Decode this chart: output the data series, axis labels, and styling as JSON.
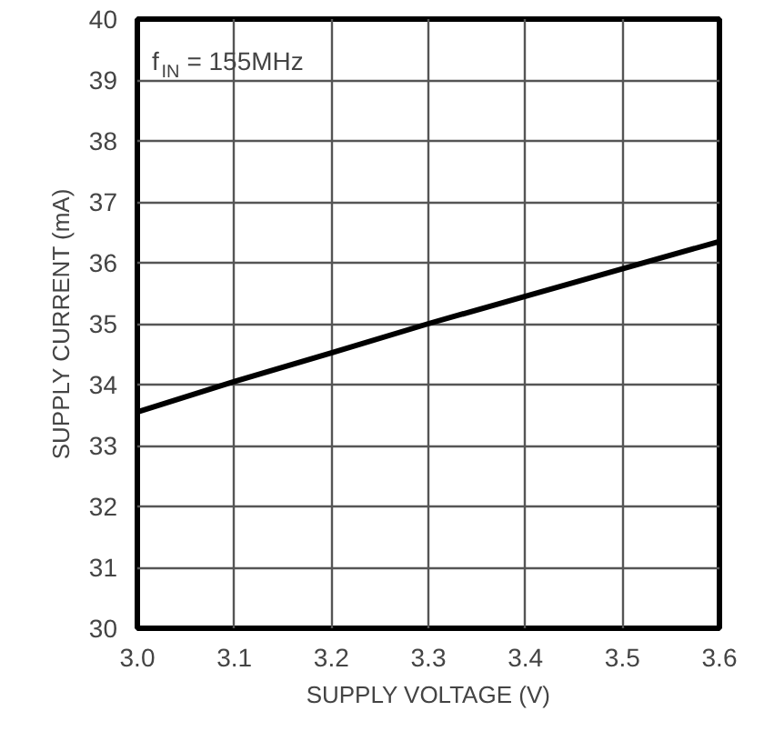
{
  "chart_data": {
    "type": "line",
    "xlabel": "SUPPLY VOLTAGE (V)",
    "ylabel": "SUPPLY CURRENT (mA)",
    "x": [
      3.0,
      3.1,
      3.2,
      3.3,
      3.4,
      3.5,
      3.6
    ],
    "series": [
      {
        "color": "#000000",
        "values": [
          33.55,
          34.05,
          34.52,
          35.0,
          35.45,
          35.9,
          36.35
        ]
      }
    ],
    "xlim": [
      3.0,
      3.6
    ],
    "xticks": [
      {
        "value": 3.0,
        "label": "3.0"
      },
      3.1,
      3.2,
      3.3,
      3.4,
      3.5,
      {
        "value": 3.6,
        "label": "3.6"
      }
    ],
    "ylim": [
      30,
      40
    ],
    "yticks": [
      30,
      31,
      32,
      33,
      34,
      35,
      36,
      37,
      38,
      39,
      40
    ],
    "grid": true,
    "marker": "none",
    "line_style": "solid",
    "annotations": [
      "f$_{IN}$ = 155MHz"
    ]
  }
}
